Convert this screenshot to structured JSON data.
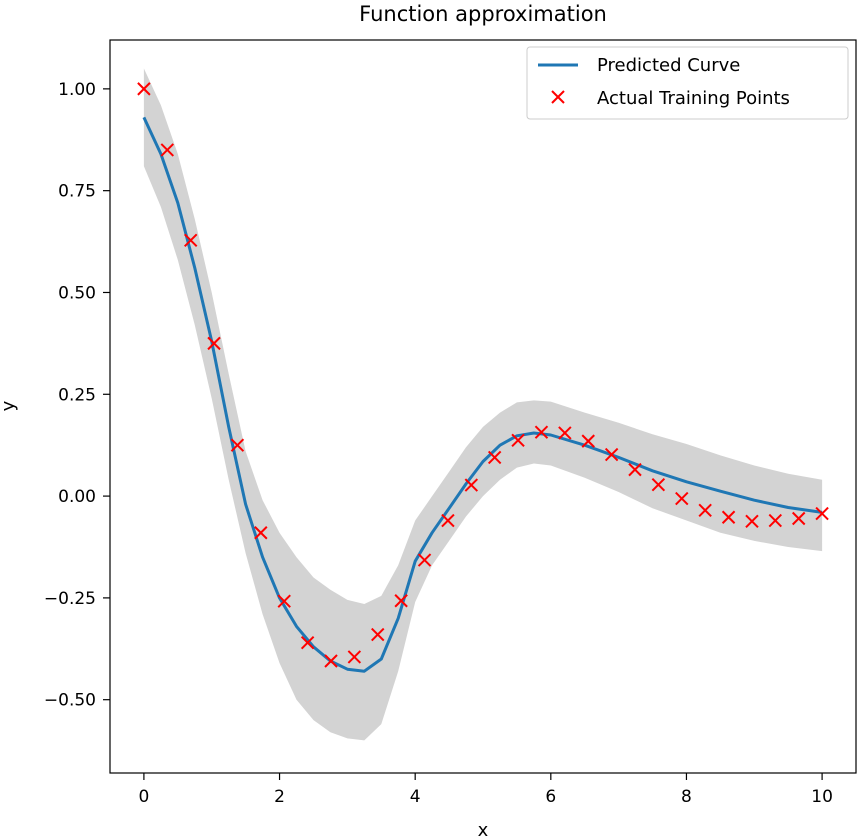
{
  "chart_data": {
    "type": "line",
    "title": "Function approximation",
    "xlabel": "x",
    "ylabel": "y",
    "xlim": [
      -0.5,
      10.5
    ],
    "ylim": [
      -0.68,
      1.12
    ],
    "xticks": [
      0,
      2,
      4,
      6,
      8,
      10
    ],
    "xtick_labels": [
      "0",
      "2",
      "4",
      "6",
      "8",
      "10"
    ],
    "yticks": [
      1.0,
      0.75,
      0.5,
      0.25,
      0.0,
      -0.25,
      -0.5
    ],
    "ytick_labels": [
      "1.00",
      "0.75",
      "0.50",
      "0.25",
      "0.00",
      "−0.25",
      "−0.50"
    ],
    "grid": false,
    "legend": {
      "position": "top-right",
      "entries": [
        "Predicted Curve",
        "Actual Training Points"
      ]
    },
    "predicted": {
      "name": "Predicted Curve",
      "color": "#1f77b4",
      "x": [
        0,
        0.25,
        0.5,
        0.75,
        1.0,
        1.25,
        1.5,
        1.75,
        2.0,
        2.25,
        2.5,
        2.75,
        3.0,
        3.25,
        3.5,
        3.75,
        4.0,
        4.25,
        4.5,
        4.75,
        5.0,
        5.25,
        5.5,
        5.75,
        6.0,
        6.5,
        7.0,
        7.5,
        8.0,
        8.5,
        9.0,
        9.5,
        10.0
      ],
      "y": [
        0.93,
        0.84,
        0.72,
        0.56,
        0.38,
        0.17,
        -0.02,
        -0.15,
        -0.25,
        -0.32,
        -0.37,
        -0.405,
        -0.425,
        -0.43,
        -0.4,
        -0.3,
        -0.16,
        -0.09,
        -0.03,
        0.03,
        0.085,
        0.125,
        0.148,
        0.155,
        0.15,
        0.125,
        0.095,
        0.062,
        0.035,
        0.012,
        -0.01,
        -0.028,
        -0.04
      ],
      "lower": [
        0.81,
        0.71,
        0.58,
        0.42,
        0.24,
        0.04,
        -0.14,
        -0.29,
        -0.41,
        -0.5,
        -0.55,
        -0.58,
        -0.595,
        -0.6,
        -0.56,
        -0.43,
        -0.26,
        -0.17,
        -0.11,
        -0.05,
        0.0,
        0.04,
        0.07,
        0.08,
        0.075,
        0.045,
        0.01,
        -0.03,
        -0.06,
        -0.09,
        -0.11,
        -0.125,
        -0.135
      ],
      "upper": [
        1.05,
        0.96,
        0.84,
        0.68,
        0.5,
        0.3,
        0.11,
        -0.01,
        -0.09,
        -0.15,
        -0.2,
        -0.23,
        -0.255,
        -0.265,
        -0.245,
        -0.17,
        -0.06,
        0.0,
        0.06,
        0.12,
        0.17,
        0.205,
        0.23,
        0.235,
        0.232,
        0.205,
        0.18,
        0.152,
        0.128,
        0.1,
        0.075,
        0.055,
        0.04
      ],
      "band_color": "#d3d3d3"
    },
    "actual": {
      "name": "Actual Training Points",
      "color": "#ff0000",
      "x": [
        0.0,
        0.345,
        0.69,
        1.034,
        1.379,
        1.724,
        2.069,
        2.414,
        2.759,
        3.103,
        3.448,
        3.793,
        4.138,
        4.483,
        4.828,
        5.172,
        5.517,
        5.862,
        6.207,
        6.552,
        6.897,
        7.241,
        7.586,
        7.931,
        8.276,
        8.621,
        8.966,
        9.31,
        9.655,
        10.0
      ],
      "y": [
        1.0,
        0.85,
        0.628,
        0.375,
        0.125,
        -0.09,
        -0.258,
        -0.36,
        -0.405,
        -0.395,
        -0.34,
        -0.257,
        -0.157,
        -0.06,
        0.027,
        0.095,
        0.137,
        0.157,
        0.155,
        0.135,
        0.102,
        0.065,
        0.028,
        -0.006,
        -0.035,
        -0.052,
        -0.062,
        -0.06,
        -0.055,
        -0.043
      ]
    }
  }
}
